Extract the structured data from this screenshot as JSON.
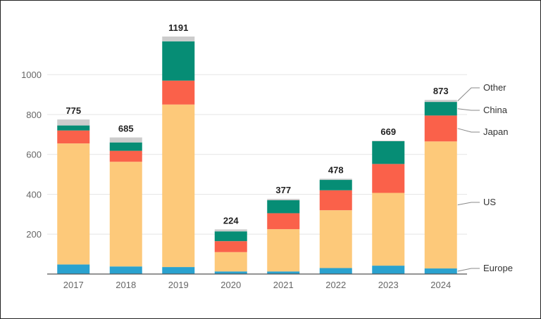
{
  "chart_data": {
    "type": "bar",
    "stacked": true,
    "title": "",
    "xlabel": "",
    "ylabel": "",
    "categories": [
      "2017",
      "2018",
      "2019",
      "2020",
      "2021",
      "2022",
      "2023",
      "2024"
    ],
    "series": [
      {
        "name": "Europe",
        "color": "#2aa2cf",
        "values": [
          48,
          38,
          35,
          13,
          13,
          30,
          42,
          28
        ]
      },
      {
        "name": "US",
        "color": "#fdc97a",
        "values": [
          607,
          525,
          815,
          97,
          212,
          290,
          365,
          637
        ]
      },
      {
        "name": "Japan",
        "color": "#fa614a",
        "values": [
          65,
          55,
          120,
          55,
          80,
          100,
          145,
          130
        ]
      },
      {
        "name": "China",
        "color": "#068d75",
        "values": [
          25,
          42,
          197,
          49,
          65,
          52,
          114,
          68
        ]
      },
      {
        "name": "Other",
        "color": "#cccccc",
        "values": [
          30,
          25,
          24,
          10,
          7,
          6,
          3,
          10
        ]
      }
    ],
    "totals": [
      "775",
      "685",
      "1191",
      "224",
      "377",
      "478",
      "669",
      "873"
    ],
    "yticks": [
      "200",
      "400",
      "600",
      "800",
      "1000"
    ],
    "ylim": [
      0,
      1200
    ],
    "grid": true,
    "legend": "right, labels with leader lines at the 2024 bar"
  }
}
